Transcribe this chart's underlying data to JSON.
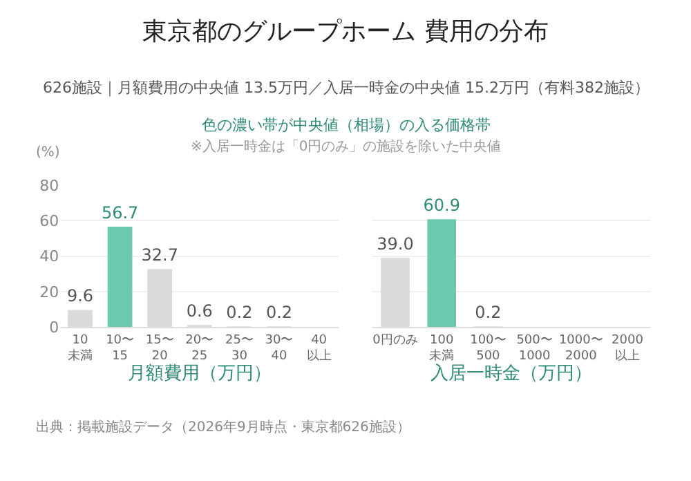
{
  "chart_data": [
    {
      "type": "bar",
      "title": "東京都のグループホーム 費用の分布",
      "subtitle": "626施設｜月額費用の中央値 13.5万円／入居一時金の中央値 15.2万円（有料382施設）",
      "annotations": [
        "色の濃い帯が中央値（相場）の入る価格帯",
        "※入居一時金は「0円のみ」の施設を除いた中央値",
        "出典：掲載施設データ（2026年9月時点・東京都626施設）"
      ],
      "xlabel": "月額費用（万円）",
      "ylabel": "(%)",
      "categories": [
        "10\n未満",
        "10〜\n15",
        "15〜\n20",
        "20〜\n25",
        "25〜\n30",
        "30〜\n40",
        "40\n以上"
      ],
      "values": [
        9.6,
        56.7,
        32.7,
        0.6,
        0.2,
        0.2,
        null
      ],
      "value_labels": [
        "9.6",
        "56.7",
        "32.7",
        "0.6",
        "0.2",
        "0.2",
        null
      ],
      "colors": [
        "#d9d9d9",
        "#6cc9b0",
        "#d9d9d9",
        "#d9d9d9",
        "#d9d9d9",
        "#d9d9d9",
        "#d9d9d9"
      ],
      "ylim": [
        0,
        80
      ],
      "yticks": [
        0,
        20,
        40,
        60,
        80
      ],
      "grid": "y"
    },
    {
      "type": "bar",
      "xlabel": "入居一時金（万円）",
      "categories": [
        "0円のみ",
        "100\n未満",
        "100〜\n500",
        "500〜\n1000",
        "1000〜\n2000",
        "2000\n以上"
      ],
      "values": [
        39.0,
        60.9,
        0.2,
        null,
        null,
        null
      ],
      "value_labels": [
        "39.0",
        "60.9",
        "0.2",
        null,
        null,
        null
      ],
      "colors": [
        "#d9d9d9",
        "#6cc9b0",
        "#d9d9d9",
        "#d9d9d9",
        "#d9d9d9",
        "#d9d9d9"
      ],
      "ylim": [
        0,
        80
      ],
      "yticks": [
        0,
        20,
        40,
        60,
        80
      ],
      "grid": "y",
      "tick_labels": "x"
    }
  ]
}
